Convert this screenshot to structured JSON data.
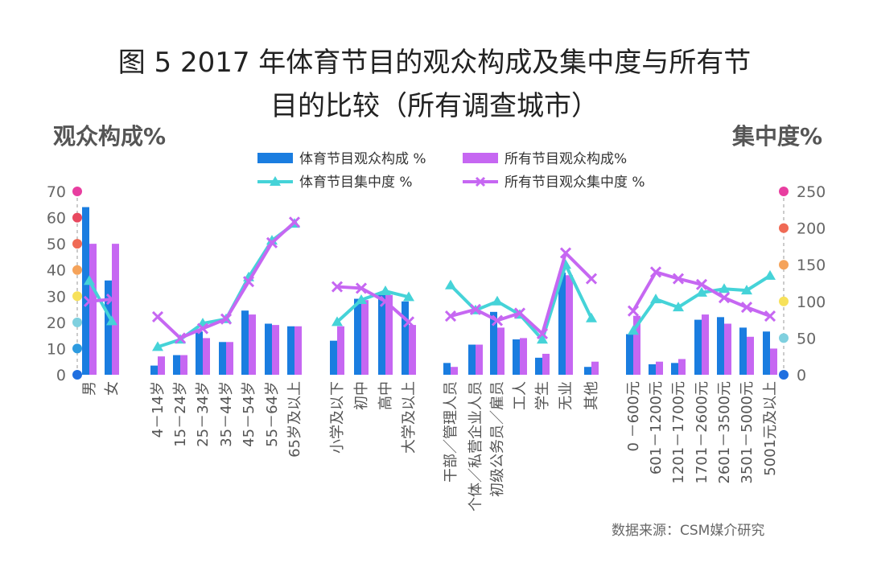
{
  "chart_data": {
    "type": "bar",
    "title_line1": "图 5 2017 年体育节目的观众构成及集中度与所有节",
    "title_line2": "目的比较（所有调查城市）",
    "ylabel_left": "观众构成%",
    "ylabel_right": "集中度%",
    "source": "数据来源：CSM媒介研究",
    "ylim_left": [
      0,
      70
    ],
    "ylim_right": [
      0,
      250
    ],
    "yticks_left": [
      "0",
      "10",
      "20",
      "30",
      "40",
      "50",
      "60",
      "70"
    ],
    "yticks_right": [
      "0",
      "50",
      "100",
      "150",
      "200",
      "250"
    ],
    "legend_position": "top",
    "groups": [
      {
        "categories": [
          "男",
          "女"
        ]
      },
      {
        "categories": [
          "4－14岁",
          "15－24岁",
          "25－34岁",
          "35－44岁",
          "45－54岁",
          "55－64岁",
          "65岁及以上"
        ]
      },
      {
        "categories": [
          "小学及以下",
          "初中",
          "高中",
          "大学及以上"
        ]
      },
      {
        "categories": [
          "干部／管理人员",
          "个体／私营企业人员",
          "初级公务员／雇员",
          "工人",
          "学生",
          "无业",
          "其他"
        ]
      },
      {
        "categories": [
          "0 －600元",
          "601－1200元",
          "1201－1700元",
          "1701－2600元",
          "2601－3500元",
          "3501－5000元",
          "5001元及以上"
        ]
      }
    ],
    "series": [
      {
        "name": "体育节目观众构成 %",
        "type": "bar",
        "axis": "left",
        "color": "#1a7de0",
        "values": [
          [
            64,
            36
          ],
          [
            3.5,
            7.5,
            16.5,
            12.5,
            24.5,
            19.5,
            18.5
          ],
          [
            13,
            29,
            31,
            28
          ],
          [
            4.5,
            11.5,
            24,
            13.5,
            6.5,
            39,
            3
          ],
          [
            15.5,
            4,
            4.5,
            21,
            22,
            18,
            16.5
          ]
        ]
      },
      {
        "name": "所有节目观众构成%",
        "type": "bar",
        "axis": "left",
        "color": "#c667f2",
        "values": [
          [
            50,
            50
          ],
          [
            7,
            7.5,
            14,
            12.5,
            23,
            19,
            18.5
          ],
          [
            18.5,
            28.5,
            30.5,
            19
          ],
          [
            3,
            11.5,
            18,
            14,
            8,
            38,
            5
          ],
          [
            22.5,
            5,
            6,
            23,
            19.5,
            14.5,
            10
          ]
        ]
      },
      {
        "name": "体育节目集中度 %",
        "type": "line",
        "axis": "right",
        "color": "#45d3d8",
        "marker": "triangle",
        "values": [
          [
            128,
            73
          ],
          [
            38,
            48,
            70,
            76,
            133,
            183,
            206
          ],
          [
            72,
            102,
            114,
            106
          ],
          [
            122,
            88,
            100,
            82,
            48,
            150,
            77
          ],
          [
            60,
            103,
            92,
            112,
            117,
            115,
            135
          ]
        ]
      },
      {
        "name": "所有节目观众集中度 %",
        "type": "line",
        "axis": "right",
        "color": "#c667f2",
        "marker": "x",
        "values": [
          [
            100,
            103
          ],
          [
            79,
            50,
            63,
            76,
            127,
            180,
            208
          ],
          [
            120,
            118,
            100,
            72
          ],
          [
            80,
            89,
            74,
            84,
            56,
            166,
            131
          ],
          [
            87,
            140,
            131,
            123,
            105,
            92,
            80
          ]
        ]
      }
    ]
  }
}
